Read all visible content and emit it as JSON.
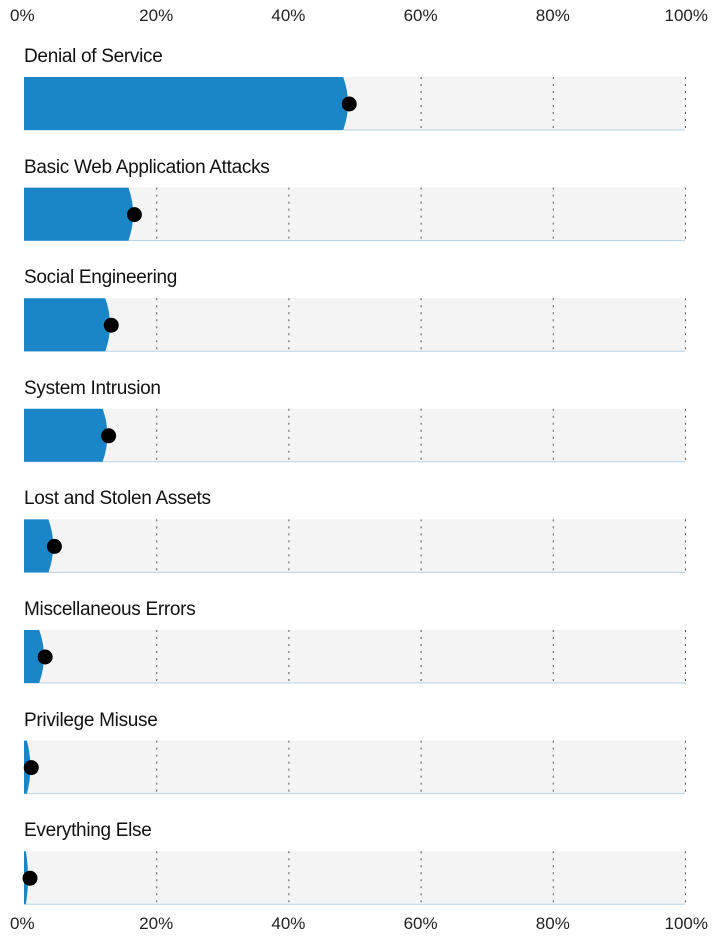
{
  "chart_data": {
    "type": "bar",
    "orientation": "horizontal",
    "title": "",
    "xlabel": "",
    "ylabel": "",
    "xlim": [
      0,
      100
    ],
    "x_ticks": [
      "0%",
      "20%",
      "40%",
      "60%",
      "80%",
      "100%"
    ],
    "grid": true,
    "categories": [
      "Denial of Service",
      "Basic Web Application Attacks",
      "Social Engineering",
      "System Intrusion",
      "Lost and Stolen Assets",
      "Miscellaneous Errors",
      "Privilege Misuse",
      "Everything Else"
    ],
    "values": [
      49.2,
      16.7,
      13.2,
      12.8,
      4.6,
      3.2,
      1.1,
      0.7
    ]
  },
  "colors": {
    "bar": "#1a85c7",
    "track": "#f4f4f4",
    "dot": "#000000",
    "grid": "#555555",
    "baseline": "#b7d3ea"
  }
}
